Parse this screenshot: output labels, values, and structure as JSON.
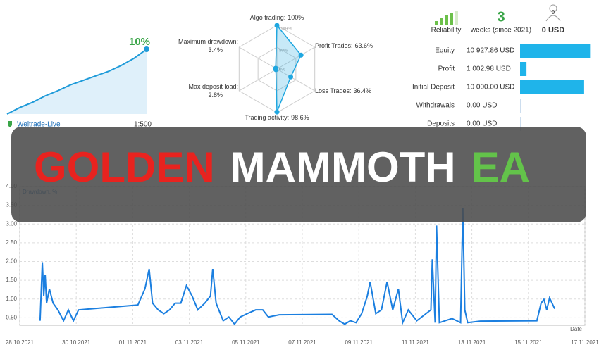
{
  "chart_data": [
    {
      "type": "area",
      "values": [
        0,
        1,
        1.8,
        2.8,
        3.6,
        4.5,
        5.2,
        5.9,
        6.6,
        7.5,
        8.6,
        10
      ],
      "end_label": "10%",
      "color": "#1f9bd9",
      "ylim": [
        0,
        10
      ]
    },
    {
      "type": "radar",
      "categories": [
        "Algo trading:",
        "Profit Trades:",
        "Loss Trades:",
        "Trading activity:",
        "Max deposit load:",
        "Maximum drawdown:"
      ],
      "values": [
        100,
        63.6,
        36.4,
        98.6,
        2.8,
        3.4
      ],
      "value_labels": [
        "100%",
        "63.6%",
        "36.4%",
        "98.6%",
        "2.8%",
        "3.4%"
      ],
      "rlim": [
        0,
        100
      ],
      "rticks": [
        {
          "value": 100,
          "label": "100+%"
        },
        {
          "value": 50,
          "label": "50%"
        },
        {
          "value": 0,
          "label": "0%"
        }
      ],
      "color": "#1fa7e0"
    },
    {
      "type": "hbar",
      "categories": [
        "Equity",
        "Profit",
        "Initial Deposit",
        "Withdrawals",
        "Deposits"
      ],
      "values": [
        10927.86,
        1002.98,
        10000,
        0,
        0
      ],
      "value_labels": [
        "10 927.86 USD",
        "1 002.98 USD",
        "10 000.00 USD",
        "0.00 USD",
        "0.00 USD"
      ],
      "xlim": [
        0,
        11000
      ],
      "color": "#1fb4ea"
    },
    {
      "type": "line",
      "legend": "Drawdown, %",
      "xlabel": "Date",
      "color": "#1b7fe0",
      "grid": true,
      "xlim": [
        0,
        20
      ],
      "xticks": [
        {
          "value": 0,
          "label": "28.10.2021"
        },
        {
          "value": 2,
          "label": "30.10.2021"
        },
        {
          "value": 4,
          "label": "01.11.2021"
        },
        {
          "value": 6,
          "label": "03.11.2021"
        },
        {
          "value": 8,
          "label": "05.11.2021"
        },
        {
          "value": 10,
          "label": "07.11.2021"
        },
        {
          "value": 12,
          "label": "09.11.2021"
        },
        {
          "value": 14,
          "label": "11.11.2021"
        },
        {
          "value": 16,
          "label": "13.11.2021"
        },
        {
          "value": 18,
          "label": "15.11.2021"
        },
        {
          "value": 20,
          "label": "17.11.2021"
        }
      ],
      "ylim": [
        0.3,
        4
      ],
      "yticks": [
        {
          "value": 0.5,
          "label": "0.50"
        },
        {
          "value": 1,
          "label": "1.00"
        },
        {
          "value": 1.5,
          "label": "1.50"
        },
        {
          "value": 2,
          "label": "2.00"
        },
        {
          "value": 2.5,
          "label": "2.50"
        },
        {
          "value": 3,
          "label": "3.00"
        },
        {
          "value": 3.5,
          "label": "3.50"
        },
        {
          "value": 4,
          "label": "4.00"
        }
      ],
      "series": [
        {
          "name": "Drawdown, %",
          "color": "#1b7fe0",
          "x": [
            0.72,
            0.8,
            0.85,
            0.9,
            0.95,
            1.05,
            1.18,
            1.35,
            1.55,
            1.72,
            1.9,
            2.08,
            4.18,
            4.43,
            4.58,
            4.7,
            4.9,
            5.1,
            5.3,
            5.5,
            5.7,
            5.9,
            6.1,
            6.3,
            6.55,
            6.75,
            6.83,
            6.95,
            7.2,
            7.4,
            7.6,
            7.8,
            8.05,
            8.35,
            8.6,
            8.8,
            9.18,
            11.05,
            11.3,
            11.5,
            11.7,
            11.9,
            12.1,
            12.3,
            12.4,
            12.6,
            12.8,
            13.0,
            13.2,
            13.4,
            13.55,
            13.75,
            14.05,
            14.55,
            14.6,
            14.7,
            14.75,
            14.85,
            15.3,
            15.6,
            15.68,
            15.75,
            15.85,
            16.3,
            18.3,
            18.45,
            18.55,
            18.65,
            18.75,
            18.93
          ],
          "values": [
            0.42,
            1.98,
            1.08,
            1.65,
            0.89,
            1.27,
            0.89,
            0.71,
            0.42,
            0.71,
            0.42,
            0.71,
            0.84,
            1.27,
            1.8,
            0.89,
            0.71,
            0.61,
            0.71,
            0.89,
            0.89,
            1.36,
            1.08,
            0.71,
            0.89,
            1.08,
            1.8,
            0.89,
            0.42,
            0.52,
            0.33,
            0.52,
            0.61,
            0.71,
            0.71,
            0.52,
            0.58,
            0.59,
            0.42,
            0.33,
            0.42,
            0.37,
            0.61,
            1.08,
            1.46,
            0.61,
            0.71,
            1.46,
            0.71,
            1.27,
            0.37,
            0.71,
            0.42,
            0.71,
            2.06,
            0.37,
            2.96,
            0.37,
            0.48,
            0.37,
            3.43,
            0.71,
            0.37,
            0.41,
            0.42,
            0.89,
            0.99,
            0.71,
            1.03,
            0.74
          ]
        }
      ]
    }
  ],
  "account": {
    "broker": "Weltrade-Live",
    "leverage": "1:500"
  },
  "stats": {
    "reliability": "Reliability",
    "weeks": "3",
    "weeks_label": "weeks (since 2021)",
    "subscribers": "0",
    "subscribers_value": "0 USD"
  },
  "banner": {
    "word1": "GOLDEN",
    "word2": "MAMMOTH",
    "word3": "EA"
  }
}
